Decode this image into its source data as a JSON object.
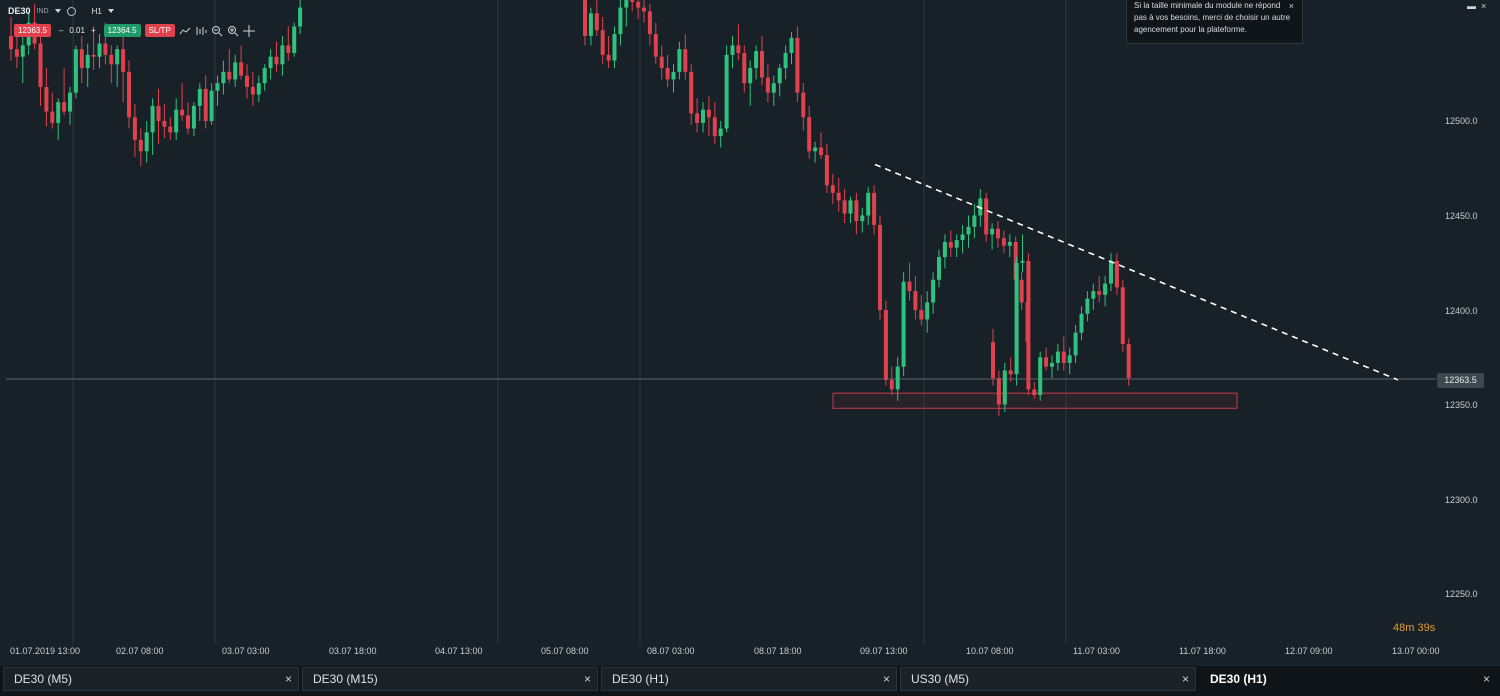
{
  "toolbar": {
    "symbol": "DE30",
    "instrument_type": "IND",
    "timeframe": "H1",
    "sell_price": "12363.5",
    "volume": "0.01",
    "minus": "–",
    "plus": "+",
    "buy_price": "12364.5",
    "sltp_label": "SL/TP"
  },
  "notice": {
    "text": "Si la taille minimale du module ne répond pas à vos besoins, merci de choisir un autre agencement pour la plateforme.",
    "close": "×"
  },
  "window_icons": {
    "restore": "▬",
    "close": "×"
  },
  "colors": {
    "background": "#182127",
    "up": "#2ec27e",
    "down": "#e0424d",
    "grid": "#2c373e",
    "trendline": "#ffffff",
    "support_zone": "#e0424d",
    "countdown": "#e49a2f"
  },
  "current_price": "12363.5",
  "countdown": "48m 39s",
  "y_axis_labels": [
    "12500.0",
    "12450.0",
    "12400.0",
    "12350.0",
    "12300.0",
    "12250.0"
  ],
  "x_axis_labels": [
    "01.07.2019 13:00",
    "02.07 08:00",
    "03.07 03:00",
    "03.07 18:00",
    "04.07 13:00",
    "05.07 08:00",
    "08.07 03:00",
    "08.07 18:00",
    "09.07 13:00",
    "10.07 08:00",
    "11.07 03:00",
    "11.07 18:00",
    "12.07 09:00",
    "13.07 00:00"
  ],
  "tabs": [
    {
      "label": "DE30 (M5)",
      "close": "×",
      "active": false
    },
    {
      "label": "DE30 (M15)",
      "close": "×",
      "active": false
    },
    {
      "label": "DE30 (H1)",
      "close": "×",
      "active": false
    },
    {
      "label": "US30 (M5)",
      "close": "×",
      "active": false
    },
    {
      "label": "DE30 (H1)",
      "close": "×",
      "active": true
    }
  ],
  "chart_data": {
    "type": "candlestick",
    "symbol": "DE30",
    "timeframe": "H1",
    "y_range": [
      12220,
      12560
    ],
    "current_price": 12363.5,
    "support_zone": {
      "low": 12348,
      "high": 12356,
      "from": "09.07 ~02:00",
      "to": "11.07 ~18:00"
    },
    "trendline": {
      "start": {
        "time": "09.07 ~11:00",
        "price": 12477
      },
      "end": {
        "time": "12.07 ~23:00",
        "price": 12363
      },
      "style": "dashed"
    },
    "segments": [
      {
        "label": "01.07 13:00 – 03.07 07:00",
        "ohlc": [
          [
            12545,
            12555,
            12532,
            12538
          ],
          [
            12538,
            12550,
            12528,
            12534
          ],
          [
            12534,
            12548,
            12520,
            12540
          ],
          [
            12540,
            12558,
            12535,
            12552
          ],
          [
            12552,
            12562,
            12538,
            12541
          ],
          [
            12541,
            12547,
            12508,
            12518
          ],
          [
            12518,
            12528,
            12497,
            12505
          ],
          [
            12505,
            12515,
            12496,
            12499
          ],
          [
            12499,
            12512,
            12490,
            12510
          ],
          [
            12510,
            12528,
            12503,
            12505
          ],
          [
            12505,
            12518,
            12498,
            12515
          ],
          [
            12515,
            12540,
            12512,
            12538
          ],
          [
            12538,
            12545,
            12520,
            12528
          ],
          [
            12528,
            12541,
            12518,
            12535
          ],
          [
            12535,
            12550,
            12527,
            12534
          ],
          [
            12534,
            12546,
            12528,
            12541
          ],
          [
            12541,
            12552,
            12530,
            12535
          ],
          [
            12535,
            12540,
            12520,
            12530
          ],
          [
            12530,
            12540,
            12518,
            12538
          ],
          [
            12538,
            12546,
            12510,
            12526
          ],
          [
            12526,
            12532,
            12496,
            12502
          ],
          [
            12502,
            12509,
            12481,
            12490
          ],
          [
            12490,
            12496,
            12476,
            12484
          ],
          [
            12484,
            12500,
            12478,
            12494
          ],
          [
            12494,
            12512,
            12482,
            12508
          ],
          [
            12508,
            12517,
            12488,
            12500
          ],
          [
            12500,
            12509,
            12491,
            12497
          ],
          [
            12497,
            12502,
            12490,
            12494
          ],
          [
            12494,
            12512,
            12490,
            12506
          ],
          [
            12506,
            12520,
            12500,
            12503
          ],
          [
            12503,
            12510,
            12493,
            12496
          ],
          [
            12496,
            12510,
            12492,
            12508
          ],
          [
            12508,
            12520,
            12500,
            12517
          ],
          [
            12517,
            12524,
            12496,
            12500
          ],
          [
            12500,
            12520,
            12498,
            12516
          ],
          [
            12516,
            12524,
            12508,
            12520
          ],
          [
            12520,
            12532,
            12514,
            12526
          ],
          [
            12526,
            12538,
            12520,
            12522
          ],
          [
            12522,
            12535,
            12518,
            12531
          ],
          [
            12531,
            12540,
            12522,
            12524
          ],
          [
            12524,
            12530,
            12512,
            12518
          ],
          [
            12518,
            12526,
            12508,
            12514
          ],
          [
            12514,
            12524,
            12510,
            12520
          ],
          [
            12520,
            12530,
            12516,
            12528
          ],
          [
            12528,
            12538,
            12522,
            12534
          ],
          [
            12534,
            12542,
            12526,
            12530
          ],
          [
            12530,
            12545,
            12524,
            12540
          ],
          [
            12540,
            12550,
            12532,
            12536
          ],
          [
            12536,
            12552,
            12534,
            12550
          ],
          [
            12550,
            12565,
            12546,
            12560
          ]
        ]
      },
      {
        "label": "05.07 08:00 – 10.07 03:00",
        "ohlc": [
          [
            12566,
            12570,
            12540,
            12545
          ],
          [
            12545,
            12560,
            12540,
            12557
          ],
          [
            12557,
            12566,
            12545,
            12548
          ],
          [
            12548,
            12555,
            12530,
            12535
          ],
          [
            12535,
            12545,
            12528,
            12532
          ],
          [
            12532,
            12550,
            12528,
            12546
          ],
          [
            12546,
            12566,
            12540,
            12560
          ],
          [
            12560,
            12570,
            12550,
            12566
          ],
          [
            12566,
            12570,
            12558,
            12563
          ],
          [
            12563,
            12568,
            12554,
            12560
          ],
          [
            12560,
            12566,
            12552,
            12558
          ],
          [
            12558,
            12562,
            12540,
            12546
          ],
          [
            12546,
            12552,
            12530,
            12534
          ],
          [
            12534,
            12540,
            12522,
            12528
          ],
          [
            12528,
            12535,
            12518,
            12522
          ],
          [
            12522,
            12530,
            12515,
            12526
          ],
          [
            12526,
            12542,
            12522,
            12538
          ],
          [
            12538,
            12546,
            12522,
            12526
          ],
          [
            12526,
            12530,
            12498,
            12504
          ],
          [
            12504,
            12512,
            12494,
            12499
          ],
          [
            12499,
            12510,
            12494,
            12506
          ],
          [
            12506,
            12513,
            12492,
            12502
          ],
          [
            12502,
            12510,
            12488,
            12492
          ],
          [
            12492,
            12500,
            12486,
            12496
          ],
          [
            12496,
            12540,
            12494,
            12535
          ],
          [
            12535,
            12545,
            12528,
            12540
          ],
          [
            12540,
            12551,
            12532,
            12536
          ],
          [
            12536,
            12540,
            12515,
            12520
          ],
          [
            12520,
            12532,
            12508,
            12528
          ],
          [
            12528,
            12540,
            12522,
            12537
          ],
          [
            12537,
            12545,
            12519,
            12523
          ],
          [
            12523,
            12530,
            12510,
            12515
          ],
          [
            12515,
            12524,
            12508,
            12520
          ],
          [
            12520,
            12530,
            12513,
            12528
          ],
          [
            12528,
            12540,
            12522,
            12536
          ],
          [
            12536,
            12547,
            12530,
            12544
          ],
          [
            12544,
            12550,
            12510,
            12515
          ],
          [
            12515,
            12520,
            12495,
            12502
          ],
          [
            12502,
            12508,
            12480,
            12484
          ],
          [
            12484,
            12489,
            12478,
            12486
          ],
          [
            12486,
            12494,
            12480,
            12482
          ],
          [
            12482,
            12488,
            12462,
            12466
          ],
          [
            12466,
            12472,
            12456,
            12462
          ],
          [
            12462,
            12470,
            12452,
            12458
          ],
          [
            12458,
            12464,
            12446,
            12451
          ],
          [
            12451,
            12460,
            12446,
            12458
          ],
          [
            12458,
            12462,
            12440,
            12447
          ],
          [
            12447,
            12454,
            12441,
            12450
          ],
          [
            12450,
            12465,
            12445,
            12462
          ],
          [
            12462,
            12466,
            12440,
            12445
          ],
          [
            12445,
            12450,
            12395,
            12400
          ],
          [
            12400,
            12405,
            12360,
            12363
          ],
          [
            12363,
            12370,
            12355,
            12358
          ],
          [
            12358,
            12375,
            12352,
            12370
          ],
          [
            12370,
            12420,
            12365,
            12415
          ],
          [
            12415,
            12425,
            12405,
            12410
          ],
          [
            12410,
            12418,
            12395,
            12400
          ],
          [
            12400,
            12408,
            12392,
            12395
          ],
          [
            12395,
            12410,
            12388,
            12404
          ],
          [
            12404,
            12420,
            12398,
            12416
          ],
          [
            12416,
            12432,
            12412,
            12428
          ],
          [
            12428,
            12440,
            12422,
            12436
          ],
          [
            12436,
            12442,
            12428,
            12433
          ],
          [
            12433,
            12440,
            12428,
            12437
          ],
          [
            12437,
            12445,
            12430,
            12440
          ],
          [
            12440,
            12450,
            12433,
            12444
          ],
          [
            12444,
            12456,
            12438,
            12450
          ],
          [
            12450,
            12464,
            12444,
            12459
          ],
          [
            12459,
            12462,
            12436,
            12440
          ],
          [
            12440,
            12446,
            12432,
            12443
          ],
          [
            12443,
            12447,
            12433,
            12438
          ],
          [
            12438,
            12442,
            12430,
            12434
          ],
          [
            12434,
            12440,
            12428,
            12436
          ],
          [
            12436,
            12439,
            12412,
            12416
          ],
          [
            12416,
            12420,
            12400,
            12404
          ],
          [
            12404,
            12410,
            12380,
            12383
          ]
        ]
      },
      {
        "label": "10.07 04:00 – 11.07 05:00",
        "ohlc": [
          [
            12383,
            12390,
            12360,
            12364
          ],
          [
            12364,
            12368,
            12344,
            12350
          ],
          [
            12350,
            12372,
            12346,
            12368
          ],
          [
            12368,
            12375,
            12362,
            12366
          ],
          [
            12366,
            12428,
            12360,
            12425
          ],
          [
            12425,
            12440,
            12420,
            12426
          ],
          [
            12426,
            12430,
            12355,
            12358
          ],
          [
            12358,
            12362,
            12353,
            12355
          ],
          [
            12355,
            12378,
            12352,
            12375
          ],
          [
            12375,
            12380,
            12368,
            12370
          ],
          [
            12370,
            12376,
            12364,
            12372
          ],
          [
            12372,
            12382,
            12368,
            12378
          ],
          [
            12378,
            12386,
            12368,
            12372
          ],
          [
            12372,
            12380,
            12366,
            12376
          ],
          [
            12376,
            12392,
            12372,
            12388
          ],
          [
            12388,
            12402,
            12384,
            12398
          ],
          [
            12398,
            12410,
            12394,
            12406
          ],
          [
            12406,
            12414,
            12400,
            12410
          ],
          [
            12410,
            12418,
            12404,
            12408
          ],
          [
            12408,
            12418,
            12402,
            12414
          ],
          [
            12414,
            12430,
            12410,
            12426
          ],
          [
            12426,
            12430,
            12408,
            12412
          ],
          [
            12412,
            12416,
            12378,
            12382
          ],
          [
            12382,
            12385,
            12360,
            12364
          ]
        ]
      }
    ]
  }
}
